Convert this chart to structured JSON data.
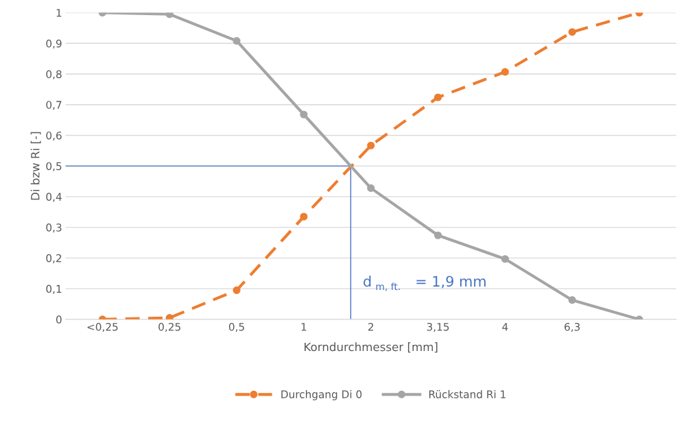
{
  "chart_data": {
    "type": "line",
    "xlabel": "Korndurchmesser [mm]",
    "ylabel": "Di bzw Ri [-]",
    "categories": [
      "<0,25",
      "0,25",
      "0,5",
      "1",
      "2",
      "3,15",
      "4",
      "6,3",
      null
    ],
    "series": [
      {
        "name": "Durchgang Di 0",
        "color": "#ed7d31",
        "line_style": "dashed",
        "values": [
          0.0,
          0.005,
          0.095,
          0.335,
          0.567,
          0.724,
          0.807,
          0.937,
          1.0
        ]
      },
      {
        "name": "Rückstand Ri 1",
        "color": "#a5a5a5",
        "line_style": "solid",
        "values": [
          1.0,
          0.995,
          0.908,
          0.668,
          0.428,
          0.274,
          0.197,
          0.063,
          0.0
        ]
      }
    ],
    "ylim": [
      0,
      1
    ],
    "yticks": [
      0,
      {
        "value": 0.1,
        "label": "0,1"
      },
      {
        "value": 0.2,
        "label": "0,2"
      },
      {
        "value": 0.3,
        "label": "0,3"
      },
      {
        "value": 0.4,
        "label": "0,4"
      },
      {
        "value": 0.5,
        "label": "0,5"
      },
      {
        "value": 0.6,
        "label": "0,6"
      },
      {
        "value": 0.7,
        "label": "0,7"
      },
      {
        "value": 0.8,
        "label": "0,8"
      },
      {
        "value": 0.9,
        "label": "0,9"
      },
      1
    ],
    "ref_lines": [
      {
        "axis": "y",
        "value": 0.5,
        "color": "#4472c4"
      }
    ],
    "annotations": [
      "d$_{m, ft.}$ = 1,9 mm"
    ],
    "grid": "y",
    "legend": "bottom",
    "marker": "circle"
  }
}
